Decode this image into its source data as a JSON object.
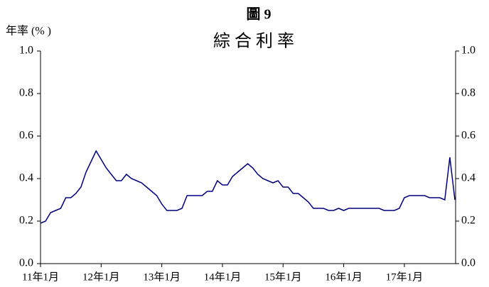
{
  "chart_data": {
    "type": "line",
    "title": "圖 9",
    "subtitle": "綜合利率",
    "y_label": "年率 (% )",
    "categories": [
      "11年1月",
      null,
      null,
      null,
      null,
      null,
      null,
      null,
      null,
      null,
      null,
      null,
      "12年1月",
      null,
      null,
      null,
      null,
      null,
      null,
      null,
      null,
      null,
      null,
      null,
      "13年1月",
      null,
      null,
      null,
      null,
      null,
      null,
      null,
      null,
      null,
      null,
      null,
      "14年1月",
      null,
      null,
      null,
      null,
      null,
      null,
      null,
      null,
      null,
      null,
      null,
      "15年1月",
      null,
      null,
      null,
      null,
      null,
      null,
      null,
      null,
      null,
      null,
      null,
      "16年1月",
      null,
      null,
      null,
      null,
      null,
      null,
      null,
      null,
      null,
      null,
      null,
      "17年1月",
      null,
      null,
      null,
      null,
      null,
      null,
      null,
      null,
      null,
      null
    ],
    "series": [
      {
        "name": "綜合利率",
        "color": "#000080",
        "values": [
          0.19,
          0.2,
          0.24,
          0.25,
          0.26,
          0.31,
          0.31,
          0.33,
          0.36,
          0.43,
          0.48,
          0.53,
          0.49,
          0.45,
          0.42,
          0.39,
          0.39,
          0.42,
          0.4,
          0.39,
          0.38,
          0.36,
          0.34,
          0.32,
          0.28,
          0.25,
          0.25,
          0.25,
          0.26,
          0.32,
          0.32,
          0.32,
          0.32,
          0.34,
          0.34,
          0.39,
          0.37,
          0.37,
          0.41,
          0.43,
          0.45,
          0.47,
          0.45,
          0.42,
          0.4,
          0.39,
          0.38,
          0.39,
          0.36,
          0.36,
          0.33,
          0.33,
          0.31,
          0.29,
          0.26,
          0.26,
          0.26,
          0.25,
          0.25,
          0.26,
          0.25,
          0.26,
          0.26,
          0.26,
          0.26,
          0.26,
          0.26,
          0.26,
          0.25,
          0.25,
          0.25,
          0.26,
          0.31,
          0.32,
          0.32,
          0.32,
          0.32,
          0.31,
          0.31,
          0.31,
          0.3,
          0.5,
          0.3
        ]
      }
    ],
    "ylim": [
      0,
      1
    ],
    "yticks": [
      {
        "value": 0,
        "label": "0.0"
      },
      {
        "value": 0.2,
        "label": "0.2"
      },
      {
        "value": 0.4,
        "label": "0.4"
      },
      {
        "value": 0.6,
        "label": "0.6"
      },
      {
        "value": 0.8,
        "label": "0.8"
      },
      {
        "value": 1,
        "label": "1.0"
      }
    ],
    "y2lim": [
      0,
      1
    ],
    "y2ticks": [
      {
        "value": 0,
        "label": "0.0"
      },
      {
        "value": 0.2,
        "label": "0.2"
      },
      {
        "value": 0.4,
        "label": "0.4"
      },
      {
        "value": 0.6,
        "label": "0.6"
      },
      {
        "value": 0.8,
        "label": "0.8"
      },
      {
        "value": 1,
        "label": "1.0"
      }
    ],
    "grid": false
  }
}
